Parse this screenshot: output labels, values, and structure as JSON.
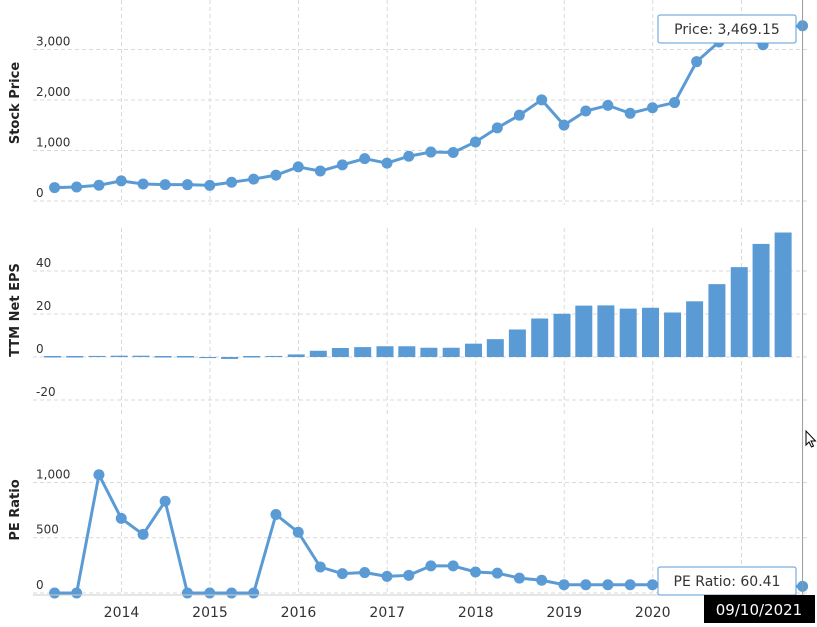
{
  "chart_data": [
    {
      "type": "line",
      "ylabel": "Stock Price",
      "ylim": [
        0,
        3900
      ],
      "yticks": [
        {
          "v": 0,
          "label": "0"
        },
        {
          "v": 1000,
          "label": "1,000"
        },
        {
          "v": 2000,
          "label": "2,000"
        },
        {
          "v": 3000,
          "label": "3,000"
        }
      ],
      "color": "#5b9bd5",
      "x": [
        "2013-03-31",
        "2013-06-30",
        "2013-09-30",
        "2013-12-31",
        "2014-03-31",
        "2014-06-30",
        "2014-09-30",
        "2014-12-31",
        "2015-03-31",
        "2015-06-30",
        "2015-09-30",
        "2015-12-31",
        "2016-03-31",
        "2016-06-30",
        "2016-09-30",
        "2016-12-31",
        "2017-03-31",
        "2017-06-30",
        "2017-09-30",
        "2017-12-31",
        "2018-03-31",
        "2018-06-30",
        "2018-09-30",
        "2018-12-31",
        "2019-03-31",
        "2019-06-30",
        "2019-09-30",
        "2019-12-31",
        "2020-03-31",
        "2020-06-30",
        "2020-09-30",
        "2020-12-31",
        "2021-03-31",
        "2021-06-30",
        "2021-09-10"
      ],
      "values": [
        266,
        278,
        312,
        398,
        336,
        325,
        323,
        310,
        372,
        434,
        512,
        675,
        593,
        716,
        838,
        750,
        886,
        969,
        961,
        1169,
        1447,
        1699,
        2003,
        1502,
        1781,
        1893,
        1736,
        1847,
        1949,
        2758,
        3149,
        3257,
        3094,
        3440,
        3469.15
      ],
      "callout": "Price: 3,469.15"
    },
    {
      "type": "bar",
      "ylabel": "TTM Net EPS",
      "ylim": [
        -25,
        60
      ],
      "yticks": [
        {
          "v": -20,
          "label": "-20"
        },
        {
          "v": 0,
          "label": "0"
        },
        {
          "v": 20,
          "label": "20"
        },
        {
          "v": 40,
          "label": "40"
        }
      ],
      "color": "#5b9bd5",
      "x": [
        "2013-03-31",
        "2013-06-30",
        "2013-09-30",
        "2013-12-31",
        "2014-03-31",
        "2014-06-30",
        "2014-09-30",
        "2014-12-31",
        "2015-03-31",
        "2015-06-30",
        "2015-09-30",
        "2015-12-31",
        "2016-03-31",
        "2016-06-30",
        "2016-09-30",
        "2016-12-31",
        "2017-03-31",
        "2017-06-30",
        "2017-09-30",
        "2017-12-31",
        "2018-03-31",
        "2018-06-30",
        "2018-09-30",
        "2018-12-31",
        "2019-03-31",
        "2019-06-30",
        "2019-09-30",
        "2019-12-31",
        "2020-03-31",
        "2020-06-30",
        "2020-09-30",
        "2020-12-31",
        "2021-03-31",
        "2021-06-30"
      ],
      "values": [
        0.1,
        0.3,
        0.5,
        0.6,
        0.6,
        0.4,
        -0.4,
        -0.5,
        -0.9,
        -0.3,
        0.5,
        1.2,
        2.9,
        4.2,
        4.6,
        5.0,
        5.0,
        4.3,
        4.3,
        6.2,
        8.3,
        12.8,
        17.9,
        20.1,
        23.9,
        24.0,
        22.5,
        22.9,
        20.7,
        25.9,
        33.9,
        41.8,
        52.6,
        57.9
      ]
    },
    {
      "type": "line",
      "ylabel": "PE Ratio",
      "ylim": [
        0,
        1520
      ],
      "yticks": [
        {
          "v": 0,
          "label": "0"
        },
        {
          "v": 500,
          "label": "500"
        },
        {
          "v": 1000,
          "label": "1,000"
        }
      ],
      "color": "#5b9bd5",
      "x": [
        "2013-03-31",
        "2013-06-30",
        "2013-09-30",
        "2013-12-31",
        "2014-03-31",
        "2014-06-30",
        "2014-09-30",
        "2014-12-31",
        "2015-03-31",
        "2015-06-30",
        "2015-09-30",
        "2015-12-31",
        "2016-03-31",
        "2016-06-30",
        "2016-09-30",
        "2016-12-31",
        "2017-03-31",
        "2017-06-30",
        "2017-09-30",
        "2017-12-31",
        "2018-03-31",
        "2018-06-30",
        "2018-09-30",
        "2018-12-31",
        "2019-03-31",
        "2019-06-30",
        "2019-09-30",
        "2019-12-31",
        "2020-03-31",
        "2020-06-30",
        "2020-09-30",
        "2020-12-31",
        "2021-03-31",
        "2021-06-30",
        "2021-09-10"
      ],
      "values": [
        0,
        0,
        1070,
        675,
        530,
        830,
        0,
        0,
        0,
        0,
        710,
        550,
        235,
        175,
        185,
        150,
        160,
        245,
        245,
        190,
        180,
        135,
        115,
        75,
        75,
        75,
        75,
        75,
        75,
        75,
        75,
        75,
        60,
        60,
        60.41
      ],
      "callout": "PE Ratio: 60.41"
    }
  ],
  "xaxis": {
    "range": [
      "2013-01-01",
      "2021-09-20"
    ],
    "labels": [
      {
        "date": "2014-01-01",
        "text": "2014"
      },
      {
        "date": "2015-01-01",
        "text": "2015"
      },
      {
        "date": "2016-01-01",
        "text": "2016"
      },
      {
        "date": "2017-01-01",
        "text": "2017"
      },
      {
        "date": "2018-01-01",
        "text": "2018"
      },
      {
        "date": "2019-01-01",
        "text": "2019"
      },
      {
        "date": "2020-01-01",
        "text": "2020"
      }
    ]
  },
  "crosshair": {
    "date": "2021-09-10",
    "label": "09/10/2021"
  }
}
